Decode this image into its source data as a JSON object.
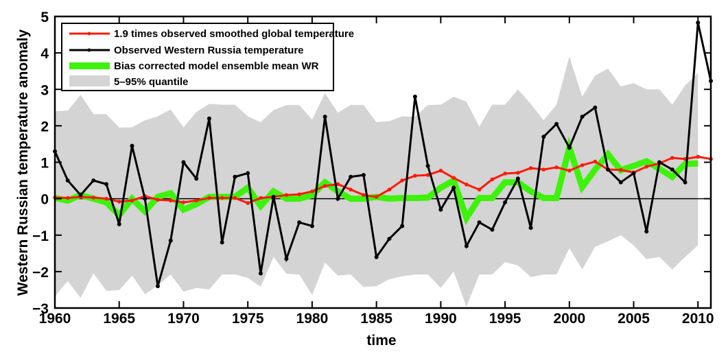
{
  "chart_data": {
    "type": "line",
    "title": "",
    "xlabel": "time",
    "ylabel": "Western Russian temperature anomaly",
    "xlim": [
      1960,
      2011
    ],
    "ylim": [
      -3,
      5
    ],
    "xticks": [
      1960,
      1965,
      1970,
      1975,
      1980,
      1985,
      1990,
      1995,
      2000,
      2005,
      2010
    ],
    "yticks": [
      -3,
      -2,
      -1,
      0,
      1,
      2,
      3,
      4,
      5
    ],
    "xtick_labels": [
      "1960",
      "1965",
      "1970",
      "1975",
      "1980",
      "1985",
      "1990",
      "1995",
      "2000",
      "2005",
      "2010"
    ],
    "ytick_labels": [
      "−3",
      "−2",
      "−1",
      "0",
      "1",
      "2",
      "3",
      "4",
      "5"
    ],
    "zero_line": true,
    "grid": false,
    "legend_position": "top-left",
    "legend": [
      {
        "label": "1.9 times observed smoothed global temperature",
        "color": "#ff1a0a",
        "kind": "line-marker"
      },
      {
        "label": "Observed Western Russia temperature",
        "color": "#000000",
        "kind": "line-marker"
      },
      {
        "label": "Bias corrected model ensemble mean WR",
        "color": "#3ef20c",
        "kind": "thick-line"
      },
      {
        "label": "5–95% quantile",
        "color": "#d4d4d4",
        "kind": "band"
      }
    ],
    "band": {
      "name": "5–95% quantile",
      "color": "#d4d4d4",
      "x": [
        1960,
        1961,
        1962,
        1963,
        1964,
        1965,
        1966,
        1967,
        1968,
        1969,
        1970,
        1971,
        1972,
        1973,
        1974,
        1975,
        1976,
        1977,
        1978,
        1979,
        1980,
        1981,
        1982,
        1983,
        1984,
        1985,
        1986,
        1987,
        1988,
        1989,
        1990,
        1991,
        1992,
        1993,
        1994,
        1995,
        1996,
        1997,
        1998,
        1999,
        2000,
        2001,
        2002,
        2003,
        2004,
        2005,
        2006,
        2007,
        2008,
        2009,
        2010
      ],
      "upper": [
        2.4,
        2.42,
        2.85,
        2.32,
        2.32,
        1.95,
        1.96,
        2.15,
        2.26,
        2.45,
        1.96,
        2.38,
        2.6,
        2.58,
        2.58,
        2.26,
        2.1,
        2.43,
        2.57,
        2.57,
        2.17,
        2.9,
        2.36,
        2.57,
        2.57,
        2.1,
        2.13,
        2.26,
        2.25,
        2.57,
        2.58,
        2.8,
        2.66,
        1.98,
        2.58,
        2.58,
        3.0,
        2.6,
        2.15,
        2.58,
        3.9,
        2.8,
        3.38,
        3.57,
        3.08,
        3.17,
        3.0,
        3.0,
        2.58,
        3.11,
        3.45
      ],
      "lower": [
        -2.68,
        -2.26,
        -2.72,
        -2.04,
        -2.53,
        -2.51,
        -2.11,
        -2.62,
        -2.38,
        -2.08,
        -2.55,
        -2.45,
        -2.49,
        -2.08,
        -2.08,
        -2.17,
        -2.42,
        -1.6,
        -2.06,
        -2.08,
        -2.64,
        -1.75,
        -2.11,
        -2.08,
        -2.42,
        -2.4,
        -2.21,
        -2.13,
        -2.08,
        -2.08,
        -2.45,
        -2.0,
        -2.96,
        -2.08,
        -2.08,
        -1.74,
        -1.83,
        -2.15,
        -2.08,
        -2.08,
        -1.36,
        -1.94,
        -1.32,
        -1.17,
        -1.0,
        -1.28,
        -1.66,
        -1.6,
        -1.94,
        -1.6,
        -1.28
      ]
    },
    "series": [
      {
        "name": "Bias corrected model ensemble mean WR",
        "color": "#3ef20c",
        "x": [
          1960,
          1961,
          1962,
          1963,
          1964,
          1965,
          1966,
          1967,
          1968,
          1969,
          1970,
          1971,
          1972,
          1973,
          1974,
          1975,
          1976,
          1977,
          1978,
          1979,
          1980,
          1981,
          1982,
          1983,
          1984,
          1985,
          1986,
          1987,
          1988,
          1989,
          1990,
          1991,
          1992,
          1993,
          1994,
          1995,
          1996,
          1997,
          1998,
          1999,
          2000,
          2001,
          2002,
          2003,
          2004,
          2005,
          2006,
          2007,
          2008,
          2009,
          2010
        ],
        "values": [
          0.02,
          -0.05,
          0.1,
          0.0,
          -0.1,
          -0.45,
          0.0,
          -0.35,
          0.05,
          0.15,
          -0.3,
          -0.15,
          0.05,
          0.05,
          0.05,
          0.3,
          -0.2,
          0.2,
          0.0,
          0.0,
          0.1,
          0.45,
          0.2,
          0.0,
          0.0,
          0.05,
          0.0,
          0.02,
          0.02,
          0.03,
          0.3,
          0.5,
          -0.53,
          0.02,
          0.02,
          0.45,
          0.45,
          0.2,
          0.02,
          0.02,
          1.4,
          0.32,
          0.8,
          1.22,
          0.78,
          0.9,
          1.03,
          0.82,
          0.6,
          0.95,
          0.97
        ]
      },
      {
        "name": "1.9 times observed smoothed global temperature",
        "color": "#ff1a0a",
        "x": [
          1960,
          1961,
          1962,
          1963,
          1964,
          1965,
          1966,
          1967,
          1968,
          1969,
          1970,
          1971,
          1972,
          1973,
          1974,
          1975,
          1976,
          1977,
          1978,
          1979,
          1980,
          1981,
          1982,
          1983,
          1984,
          1985,
          1986,
          1987,
          1988,
          1989,
          1990,
          1991,
          1992,
          1993,
          1994,
          1995,
          1996,
          1997,
          1998,
          1999,
          2000,
          2001,
          2002,
          2003,
          2004,
          2005,
          2006,
          2007,
          2008,
          2009,
          2010,
          2011
        ],
        "values": [
          0.03,
          0.02,
          0.05,
          0.03,
          0.0,
          -0.08,
          -0.05,
          0.07,
          -0.03,
          -0.05,
          -0.1,
          -0.05,
          0.02,
          0.02,
          0.02,
          -0.12,
          0.02,
          0.05,
          0.1,
          0.12,
          0.2,
          0.35,
          0.4,
          0.25,
          0.1,
          0.05,
          0.25,
          0.5,
          0.63,
          0.65,
          0.77,
          0.57,
          0.39,
          0.25,
          0.53,
          0.69,
          0.71,
          0.84,
          0.8,
          0.86,
          0.77,
          0.92,
          1.02,
          0.8,
          0.79,
          0.72,
          0.88,
          0.97,
          1.12,
          1.09,
          1.15,
          1.09
        ]
      },
      {
        "name": "Observed Western Russia temperature",
        "color": "#000000",
        "x": [
          1960,
          1961,
          1962,
          1963,
          1964,
          1965,
          1966,
          1967,
          1968,
          1969,
          1970,
          1971,
          1972,
          1973,
          1974,
          1975,
          1976,
          1977,
          1978,
          1979,
          1980,
          1981,
          1982,
          1983,
          1984,
          1985,
          1986,
          1987,
          1988,
          1989,
          1990,
          1991,
          1992,
          1993,
          1994,
          1995,
          1996,
          1997,
          1998,
          1999,
          2000,
          2001,
          2002,
          2003,
          2004,
          2005,
          2006,
          2007,
          2008,
          2009,
          2010,
          2011
        ],
        "values": [
          1.3,
          0.5,
          0.1,
          0.5,
          0.4,
          -0.7,
          1.45,
          0.0,
          -2.4,
          -1.15,
          1.0,
          0.55,
          2.2,
          -1.2,
          0.6,
          0.7,
          -2.05,
          0.05,
          -1.65,
          -0.65,
          -0.75,
          2.25,
          0.0,
          0.6,
          0.65,
          -1.6,
          -1.1,
          -0.75,
          2.8,
          0.9,
          -0.3,
          0.3,
          -1.3,
          -0.65,
          -0.85,
          -0.1,
          0.55,
          -0.8,
          1.7,
          2.05,
          1.4,
          2.25,
          2.5,
          0.8,
          0.45,
          0.7,
          -0.9,
          1.0,
          0.8,
          0.45,
          4.83,
          3.23
        ]
      }
    ]
  }
}
